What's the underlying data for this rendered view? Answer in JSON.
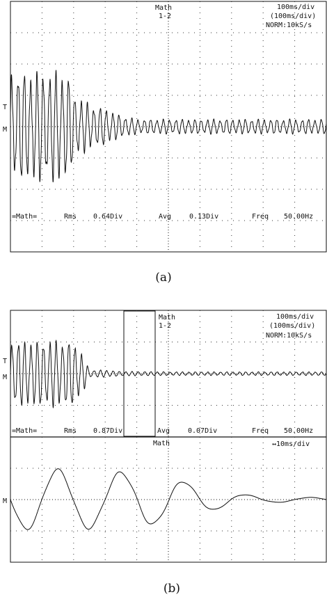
{
  "panel_a": {
    "channel": "Math",
    "channel_sub": "1-2",
    "timebase": "100ms/div",
    "timebase_sub": "(100ms/div)",
    "acq": "NORM:10kS/s",
    "meas_label": "=Math=",
    "rms_label": "Rms",
    "rms_value": "0.64Div",
    "avg_label": "Avg",
    "avg_value": "0.13Div",
    "freq_label": "Freq",
    "freq_value": "50.00Hz",
    "trig_marker": "T",
    "ch_marker": "M",
    "caption": "(a)"
  },
  "panel_b": {
    "channel": "Math",
    "channel_sub": "1-2",
    "timebase": "100ms/div",
    "timebase_sub": "(100ms/div)",
    "acq": "NORM:10kS/s",
    "meas_label": "=Math=",
    "rms_label": "Rms",
    "rms_value": "0.87Div",
    "avg_label": "Avg",
    "avg_value": "0.07Div",
    "freq_label": "Freq",
    "freq_value": "50.00Hz",
    "trig_marker": "T",
    "ch_marker": "M",
    "zoom_channel": "Math",
    "zoom_timebase": "↔10ms/div",
    "zoom_marker": "M",
    "caption": "(b)"
  },
  "chart_data": [
    {
      "type": "line",
      "title": "",
      "series": [
        {
          "description_key": "math_a",
          "x": [
            0,
            50,
            100,
            150,
            180,
            200,
            250,
            300,
            350,
            400,
            450,
            500,
            550,
            600,
            650,
            700,
            750,
            800,
            850,
            900,
            950,
            1000
          ],
          "y_amplitude": [
            1.5,
            1.5,
            1.5,
            1.5,
            1.5,
            0.9,
            0.6,
            0.5,
            0.3,
            0.2,
            0.2,
            0.2,
            0.2,
            0.2,
            0.2,
            0.2,
            0.2,
            0.2,
            0.2,
            0.2,
            0.2,
            0.2
          ]
        }
      ],
      "xlabel": "",
      "ylabel": "",
      "x_units": "ms",
      "y_units": "div",
      "xlim": [
        0,
        1000
      ],
      "ylim": [
        -4,
        4
      ],
      "frequency_hz": 50,
      "grid": true
    },
    {
      "type": "line",
      "title": "",
      "series": [
        {
          "description_key": "math_b_main",
          "x": [
            0,
            50,
            100,
            150,
            200,
            230,
            250,
            300,
            350,
            400,
            500,
            600,
            700,
            800,
            900,
            1000
          ],
          "y_amplitude": [
            0.9,
            0.9,
            0.9,
            0.9,
            0.9,
            0.5,
            0.1,
            0.1,
            0.06,
            0.06,
            0.05,
            0.05,
            0.05,
            0.05,
            0.05,
            0.05
          ]
        },
        {
          "description_key": "math_b_zoom",
          "x": [
            0,
            10,
            20,
            30,
            40,
            50,
            60,
            70,
            80,
            90,
            100
          ],
          "y_amplitude": [
            0.9,
            0.9,
            0.9,
            0.9,
            0.9,
            0.7,
            0.4,
            0.2,
            0.1,
            0.08,
            0.06
          ]
        }
      ],
      "xlabel": "",
      "ylabel": "",
      "x_units": "ms",
      "y_units": "div",
      "xlim": [
        0,
        1000
      ],
      "zoom_xlim": [
        0,
        100
      ],
      "ylim": [
        -4,
        4
      ],
      "frequency_hz": 50,
      "grid": true
    }
  ]
}
